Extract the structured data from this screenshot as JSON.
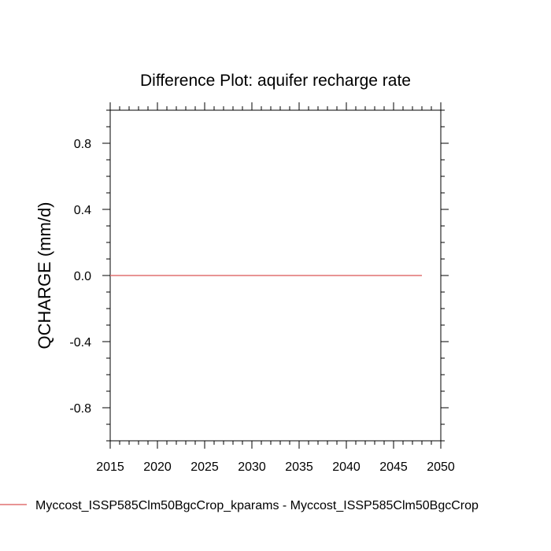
{
  "chart_data": {
    "type": "line",
    "title": "Difference Plot: aquifer recharge rate",
    "xlabel": "",
    "ylabel": "QCHARGE  (mm/d)",
    "xlim": [
      2015,
      2050
    ],
    "ylim": [
      -1.0,
      1.0
    ],
    "x_ticks": [
      2015,
      2020,
      2025,
      2030,
      2035,
      2040,
      2045,
      2050
    ],
    "x_tick_labels": [
      "2015",
      "2020",
      "2025",
      "2030",
      "2035",
      "2040",
      "2045",
      "2050"
    ],
    "y_ticks": [
      0.8,
      0.4,
      0.0,
      -0.4,
      -0.8
    ],
    "y_tick_labels": [
      "0.8",
      "0.4",
      "0.0",
      "-0.4",
      "-0.8"
    ],
    "grid": false,
    "legend_position": "bottom",
    "series": [
      {
        "name": "Myccost_ISSP585Clm50BgcCrop_kparams - Myccost_ISSP585Clm50BgcCrop",
        "color": "#e07070",
        "x": [
          2015,
          2020,
          2025,
          2030,
          2035,
          2040,
          2045,
          2048
        ],
        "y": [
          0.0,
          0.0,
          0.0,
          0.0,
          0.0,
          0.0,
          0.0,
          0.0
        ]
      }
    ]
  }
}
